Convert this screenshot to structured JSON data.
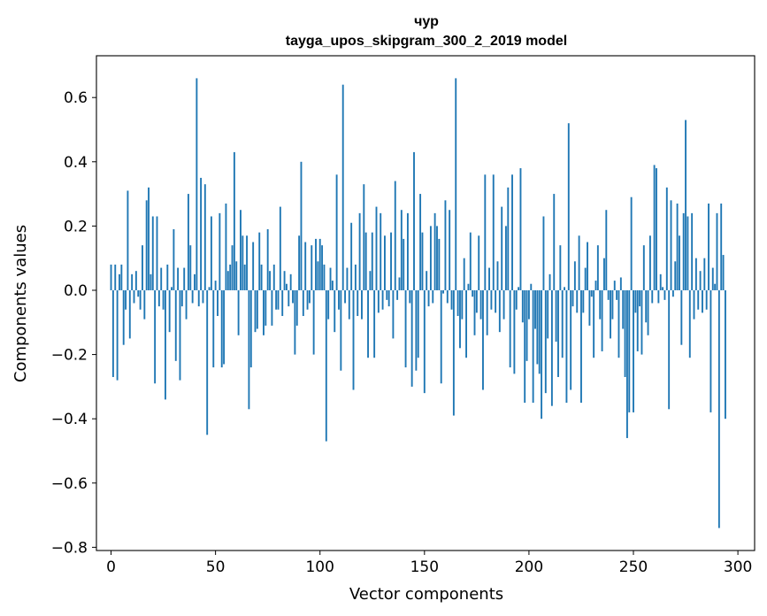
{
  "chart_data": {
    "type": "bar",
    "title": "чур",
    "subtitle": "tayga_upos_skipgram_300_2_2019 model",
    "xlabel": "Vector components",
    "ylabel": "Components values",
    "xlim": [
      -7,
      308
    ],
    "ylim": [
      -0.81,
      0.73
    ],
    "xticks": [
      0,
      50,
      100,
      150,
      200,
      250,
      300
    ],
    "yticks": [
      -0.8,
      -0.6,
      -0.4,
      -0.2,
      0.0,
      0.2,
      0.4,
      0.6
    ],
    "ytick_labels": [
      "−0.8",
      "−0.6",
      "−0.4",
      "−0.2",
      "0.0",
      "0.2",
      "0.4",
      "0.6"
    ],
    "grid": false,
    "color": "#1f77b4",
    "values": [
      0.08,
      -0.27,
      0.08,
      -0.28,
      0.05,
      0.08,
      -0.17,
      -0.06,
      0.31,
      -0.15,
      0.05,
      -0.04,
      0.06,
      -0.02,
      -0.06,
      0.14,
      -0.09,
      0.28,
      0.32,
      0.05,
      0.23,
      -0.29,
      0.23,
      -0.05,
      0.07,
      -0.06,
      -0.34,
      0.08,
      -0.13,
      0.01,
      0.19,
      -0.22,
      0.07,
      -0.28,
      -0.05,
      0.07,
      -0.09,
      0.3,
      0.14,
      -0.04,
      0.05,
      0.66,
      -0.05,
      0.35,
      -0.04,
      0.33,
      -0.45,
      0.01,
      0.23,
      -0.24,
      0.03,
      -0.08,
      0.24,
      -0.24,
      -0.23,
      0.27,
      0.06,
      0.08,
      0.14,
      0.43,
      0.09,
      -0.14,
      0.25,
      0.17,
      0.08,
      0.17,
      -0.37,
      -0.24,
      0.15,
      -0.13,
      -0.12,
      0.18,
      0.08,
      -0.14,
      -0.11,
      0.19,
      0.06,
      -0.11,
      0.08,
      -0.06,
      -0.06,
      0.26,
      -0.08,
      0.06,
      0.02,
      -0.05,
      0.05,
      -0.04,
      -0.2,
      -0.11,
      0.17,
      0.4,
      -0.08,
      0.15,
      -0.06,
      -0.04,
      0.14,
      -0.2,
      0.16,
      0.09,
      0.16,
      0.14,
      0.08,
      -0.47,
      -0.09,
      0.07,
      0.03,
      -0.13,
      0.36,
      -0.06,
      -0.25,
      0.64,
      -0.04,
      0.07,
      -0.09,
      0.21,
      -0.31,
      0.08,
      -0.08,
      0.24,
      -0.09,
      0.33,
      0.18,
      -0.21,
      0.06,
      0.18,
      -0.21,
      0.26,
      -0.07,
      0.24,
      -0.06,
      0.17,
      -0.03,
      -0.05,
      0.18,
      -0.15,
      0.34,
      -0.03,
      0.04,
      0.25,
      0.16,
      -0.24,
      0.24,
      -0.04,
      -0.3,
      0.43,
      -0.25,
      -0.21,
      0.3,
      0.18,
      -0.32,
      0.06,
      -0.05,
      0.2,
      -0.04,
      0.24,
      0.2,
      0.16,
      -0.29,
      -0.01,
      0.28,
      -0.04,
      0.25,
      -0.06,
      -0.39,
      0.66,
      -0.08,
      -0.18,
      -0.09,
      0.1,
      -0.21,
      0.02,
      0.18,
      -0.02,
      -0.14,
      -0.07,
      0.17,
      -0.09,
      -0.31,
      0.36,
      -0.14,
      0.07,
      -0.06,
      0.36,
      -0.07,
      0.09,
      -0.13,
      0.26,
      -0.09,
      0.2,
      0.32,
      -0.24,
      0.36,
      -0.26,
      -0.06,
      0.01,
      0.38,
      -0.1,
      -0.35,
      -0.22,
      -0.09,
      0.02,
      -0.35,
      -0.12,
      -0.23,
      -0.26,
      -0.4,
      0.23,
      -0.32,
      -0.15,
      0.05,
      -0.36,
      0.3,
      -0.16,
      -0.27,
      0.14,
      -0.21,
      0.01,
      -0.35,
      0.52,
      -0.31,
      -0.05,
      0.09,
      -0.07,
      0.17,
      -0.35,
      -0.07,
      0.07,
      0.15,
      -0.11,
      -0.02,
      -0.21,
      0.03,
      0.14,
      -0.09,
      -0.19,
      0.1,
      0.25,
      -0.03,
      -0.15,
      -0.09,
      0.03,
      -0.03,
      -0.21,
      0.04,
      -0.12,
      -0.27,
      -0.46,
      -0.38,
      0.29,
      -0.38,
      -0.07,
      -0.19,
      -0.05,
      -0.2,
      0.14,
      -0.1,
      -0.14,
      0.17,
      -0.04,
      0.39,
      0.38,
      -0.04,
      0.05,
      0.01,
      -0.03,
      0.32,
      -0.37,
      0.28,
      -0.02,
      0.09,
      0.27,
      0.17,
      -0.17,
      0.24,
      0.53,
      0.23,
      -0.21,
      0.24,
      -0.09,
      0.1,
      -0.06,
      0.06,
      -0.07,
      0.1,
      -0.06,
      0.27,
      -0.38,
      0.07,
      0.02,
      0.24,
      -0.74,
      0.27,
      0.11,
      -0.4
    ]
  }
}
